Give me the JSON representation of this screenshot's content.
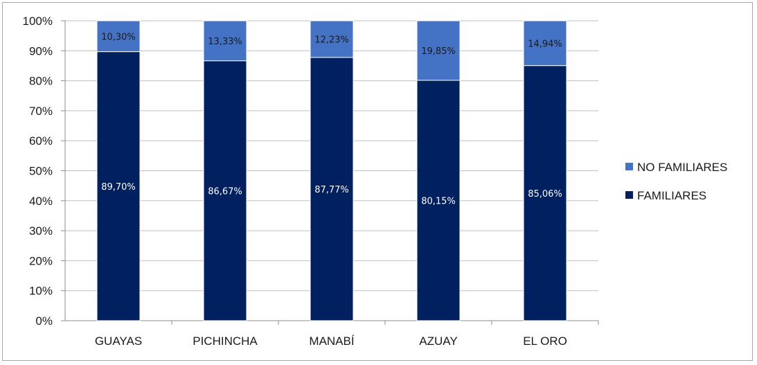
{
  "chart_data": {
    "type": "bar",
    "stacked": true,
    "percent": true,
    "categories": [
      "GUAYAS",
      "PICHINCHA",
      "MANABÍ",
      "AZUAY",
      "EL ORO"
    ],
    "series": [
      {
        "name": "FAMILIARES",
        "color": "#002060",
        "values": [
          89.7,
          86.67,
          87.77,
          80.15,
          85.06
        ],
        "labels": [
          "89,70%",
          "86,67%",
          "87,77%",
          "80,15%",
          "85,06%"
        ]
      },
      {
        "name": "NO FAMILIARES",
        "color": "#4472C4",
        "values": [
          10.3,
          13.33,
          12.23,
          19.85,
          14.94
        ],
        "labels": [
          "10,30%",
          "13,33%",
          "12,23%",
          "19,85%",
          "14,94%"
        ]
      }
    ],
    "ylim": [
      0,
      100
    ],
    "yticks": [
      "0%",
      "10%",
      "20%",
      "30%",
      "40%",
      "50%",
      "60%",
      "70%",
      "80%",
      "90%",
      "100%"
    ],
    "grid": true,
    "legend_position": "right",
    "legend": [
      "NO FAMILIARES",
      "FAMILIARES"
    ]
  }
}
